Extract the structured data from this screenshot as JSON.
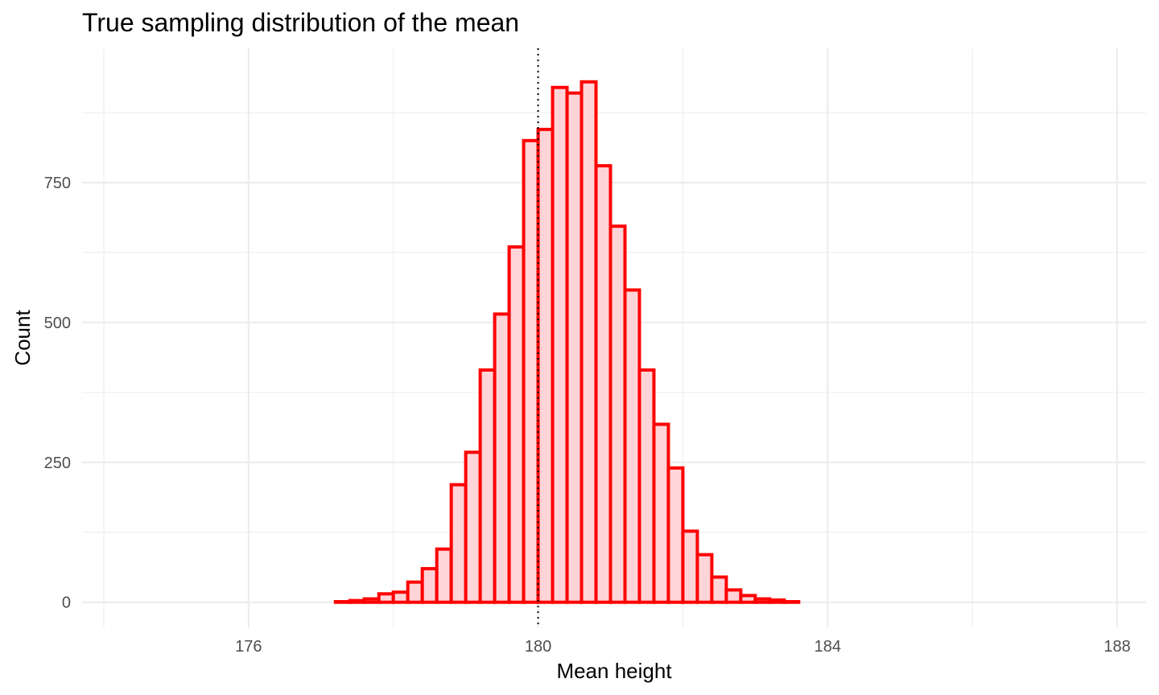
{
  "chart_data": {
    "type": "bar",
    "title": "True sampling distribution of the mean",
    "xlabel": "Mean height",
    "ylabel": "Count",
    "xlim": [
      173.7,
      188.4
    ],
    "ylim": [
      -45,
      990
    ],
    "x_ticks": [
      176,
      180,
      184,
      188
    ],
    "x_tick_labels": [
      "176",
      "180",
      "184",
      "188"
    ],
    "y_ticks": [
      0,
      250,
      500,
      750
    ],
    "y_tick_labels": [
      "0",
      "250",
      "500",
      "750"
    ],
    "x_minor_ticks": [
      174,
      178,
      182,
      186
    ],
    "y_minor_ticks": [
      125,
      375,
      625,
      875
    ],
    "bin_width": 0.2,
    "bin_starts": [
      173.8,
      174.0,
      174.2,
      174.4,
      174.6,
      174.8,
      175.0,
      175.2,
      175.4,
      175.6,
      175.8,
      176.0,
      176.2,
      176.4,
      176.6,
      176.8,
      177.0,
      177.2,
      177.4,
      177.6,
      177.8,
      178.0,
      178.2,
      178.4,
      178.6,
      178.8,
      179.0,
      179.2,
      179.4,
      179.6,
      179.8,
      180.0,
      180.2,
      180.4,
      180.6,
      180.8,
      181.0,
      181.2,
      181.4,
      181.6,
      181.8,
      182.0,
      182.2,
      182.4,
      182.6,
      182.8,
      183.0,
      183.2,
      183.4,
      183.6,
      183.8,
      184.0,
      184.2,
      184.4,
      184.6,
      184.8,
      185.0,
      185.2,
      185.4,
      185.6,
      185.8,
      186.0,
      186.2,
      186.4,
      186.6,
      186.8,
      187.0,
      187.2,
      187.4,
      187.6
    ],
    "counts": [
      0,
      0,
      0,
      0,
      0,
      0,
      0,
      0,
      0,
      0,
      0,
      0,
      0,
      0,
      0,
      0,
      0,
      1,
      3,
      6,
      15,
      18,
      36,
      60,
      95,
      210,
      268,
      415,
      515,
      635,
      825,
      845,
      920,
      910,
      930,
      780,
      672,
      558,
      415,
      318,
      240,
      127,
      85,
      45,
      22,
      12,
      6,
      4,
      1,
      0,
      0,
      0,
      0,
      0,
      0,
      0,
      0,
      0,
      0,
      0,
      0,
      0,
      0,
      0,
      0,
      0,
      0,
      0,
      0,
      0
    ],
    "reference_line": {
      "x": 180,
      "style": "dotted"
    },
    "bar_fill": "#ffd4d9",
    "bar_stroke": "#ff0000",
    "grid": true,
    "grid_color": "#ebebeb"
  }
}
